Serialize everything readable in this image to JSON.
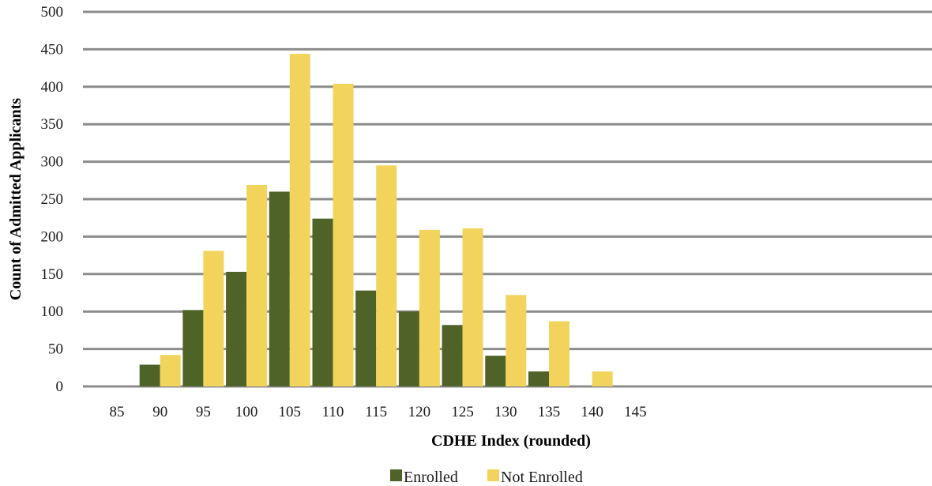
{
  "chart_data": {
    "type": "bar",
    "title": "",
    "xlabel": "CDHE Index (rounded)",
    "ylabel": "Count of Admitted Applicants",
    "categories": [
      "85",
      "90",
      "95",
      "100",
      "105",
      "110",
      "115",
      "120",
      "125",
      "130",
      "135",
      "140",
      "145"
    ],
    "ylim": [
      0,
      500
    ],
    "yticks": [
      0,
      50,
      100,
      150,
      200,
      250,
      300,
      350,
      400,
      450,
      500
    ],
    "grid": true,
    "legend_position": "bottom",
    "series": [
      {
        "name": "Enrolled",
        "color": "#4f6228",
        "values": [
          0,
          29,
          102,
          153,
          260,
          224,
          128,
          100,
          82,
          41,
          20,
          0,
          0
        ]
      },
      {
        "name": "Not Enrolled",
        "color": "#f2d45c",
        "values": [
          0,
          42,
          181,
          269,
          444,
          404,
          295,
          209,
          211,
          122,
          87,
          20,
          0
        ]
      }
    ]
  }
}
